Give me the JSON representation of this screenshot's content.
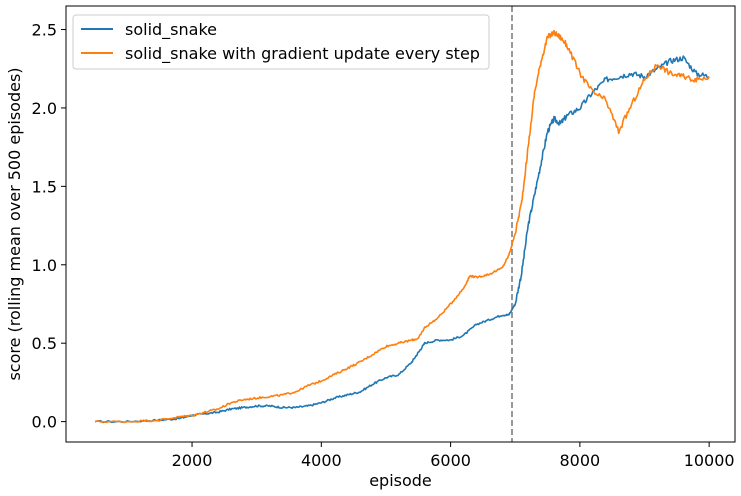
{
  "chart_data": {
    "type": "line",
    "xlabel": "episode",
    "ylabel": "score (rolling mean over 500 episodes)",
    "xlim": [
      50,
      10400
    ],
    "ylim": [
      -0.13,
      2.65
    ],
    "xticks": [
      2000,
      4000,
      6000,
      8000,
      10000
    ],
    "yticks": [
      0.0,
      0.5,
      1.0,
      1.5,
      2.0,
      2.5
    ],
    "xtick_labels": [
      "2000",
      "4000",
      "6000",
      "8000",
      "10000"
    ],
    "ytick_labels": [
      "0.0",
      "0.5",
      "1.0",
      "1.5",
      "2.0",
      "2.5"
    ],
    "vline": {
      "x": 6950,
      "style": "dashed",
      "color": "#7f7f7f"
    },
    "legend_position": "top-left",
    "grid": false,
    "series": [
      {
        "name": "solid_snake",
        "color": "#1f77b4",
        "points": [
          [
            500,
            0.0
          ],
          [
            1000,
            0.0
          ],
          [
            1500,
            0.01
          ],
          [
            1800,
            0.02
          ],
          [
            2000,
            0.04
          ],
          [
            2200,
            0.05
          ],
          [
            2400,
            0.06
          ],
          [
            2600,
            0.08
          ],
          [
            2800,
            0.09
          ],
          [
            3000,
            0.1
          ],
          [
            3200,
            0.1
          ],
          [
            3400,
            0.09
          ],
          [
            3600,
            0.09
          ],
          [
            3800,
            0.1
          ],
          [
            4000,
            0.12
          ],
          [
            4200,
            0.15
          ],
          [
            4400,
            0.17
          ],
          [
            4600,
            0.19
          ],
          [
            4800,
            0.24
          ],
          [
            5000,
            0.28
          ],
          [
            5200,
            0.3
          ],
          [
            5400,
            0.38
          ],
          [
            5500,
            0.44
          ],
          [
            5600,
            0.5
          ],
          [
            5800,
            0.52
          ],
          [
            6000,
            0.52
          ],
          [
            6200,
            0.55
          ],
          [
            6400,
            0.62
          ],
          [
            6600,
            0.65
          ],
          [
            6800,
            0.68
          ],
          [
            6900,
            0.68
          ],
          [
            7000,
            0.75
          ],
          [
            7100,
            0.95
          ],
          [
            7200,
            1.25
          ],
          [
            7300,
            1.45
          ],
          [
            7400,
            1.65
          ],
          [
            7500,
            1.85
          ],
          [
            7600,
            1.93
          ],
          [
            7700,
            1.9
          ],
          [
            7800,
            1.95
          ],
          [
            8000,
            2.0
          ],
          [
            8200,
            2.1
          ],
          [
            8400,
            2.18
          ],
          [
            8600,
            2.2
          ],
          [
            8800,
            2.22
          ],
          [
            9000,
            2.2
          ],
          [
            9200,
            2.25
          ],
          [
            9400,
            2.3
          ],
          [
            9600,
            2.32
          ],
          [
            9800,
            2.22
          ],
          [
            10000,
            2.2
          ]
        ]
      },
      {
        "name": "solid_snake with gradient update every step",
        "color": "#ff7f0e",
        "points": [
          [
            500,
            0.0
          ],
          [
            1000,
            0.0
          ],
          [
            1500,
            0.01
          ],
          [
            1800,
            0.03
          ],
          [
            2000,
            0.04
          ],
          [
            2200,
            0.06
          ],
          [
            2400,
            0.08
          ],
          [
            2600,
            0.12
          ],
          [
            2800,
            0.14
          ],
          [
            3000,
            0.15
          ],
          [
            3200,
            0.16
          ],
          [
            3400,
            0.17
          ],
          [
            3600,
            0.19
          ],
          [
            3800,
            0.23
          ],
          [
            4000,
            0.26
          ],
          [
            4200,
            0.3
          ],
          [
            4400,
            0.34
          ],
          [
            4600,
            0.38
          ],
          [
            4800,
            0.43
          ],
          [
            5000,
            0.48
          ],
          [
            5200,
            0.5
          ],
          [
            5400,
            0.52
          ],
          [
            5500,
            0.53
          ],
          [
            5600,
            0.6
          ],
          [
            5800,
            0.66
          ],
          [
            6000,
            0.75
          ],
          [
            6200,
            0.85
          ],
          [
            6300,
            0.93
          ],
          [
            6400,
            0.92
          ],
          [
            6600,
            0.94
          ],
          [
            6800,
            0.98
          ],
          [
            6900,
            1.06
          ],
          [
            7000,
            1.2
          ],
          [
            7100,
            1.4
          ],
          [
            7200,
            1.75
          ],
          [
            7300,
            2.1
          ],
          [
            7400,
            2.3
          ],
          [
            7500,
            2.45
          ],
          [
            7600,
            2.48
          ],
          [
            7700,
            2.45
          ],
          [
            7800,
            2.4
          ],
          [
            8000,
            2.22
          ],
          [
            8200,
            2.1
          ],
          [
            8400,
            2.05
          ],
          [
            8600,
            1.85
          ],
          [
            8800,
            2.02
          ],
          [
            9000,
            2.18
          ],
          [
            9200,
            2.28
          ],
          [
            9400,
            2.22
          ],
          [
            9600,
            2.2
          ],
          [
            9800,
            2.18
          ],
          [
            10000,
            2.2
          ]
        ]
      }
    ]
  }
}
